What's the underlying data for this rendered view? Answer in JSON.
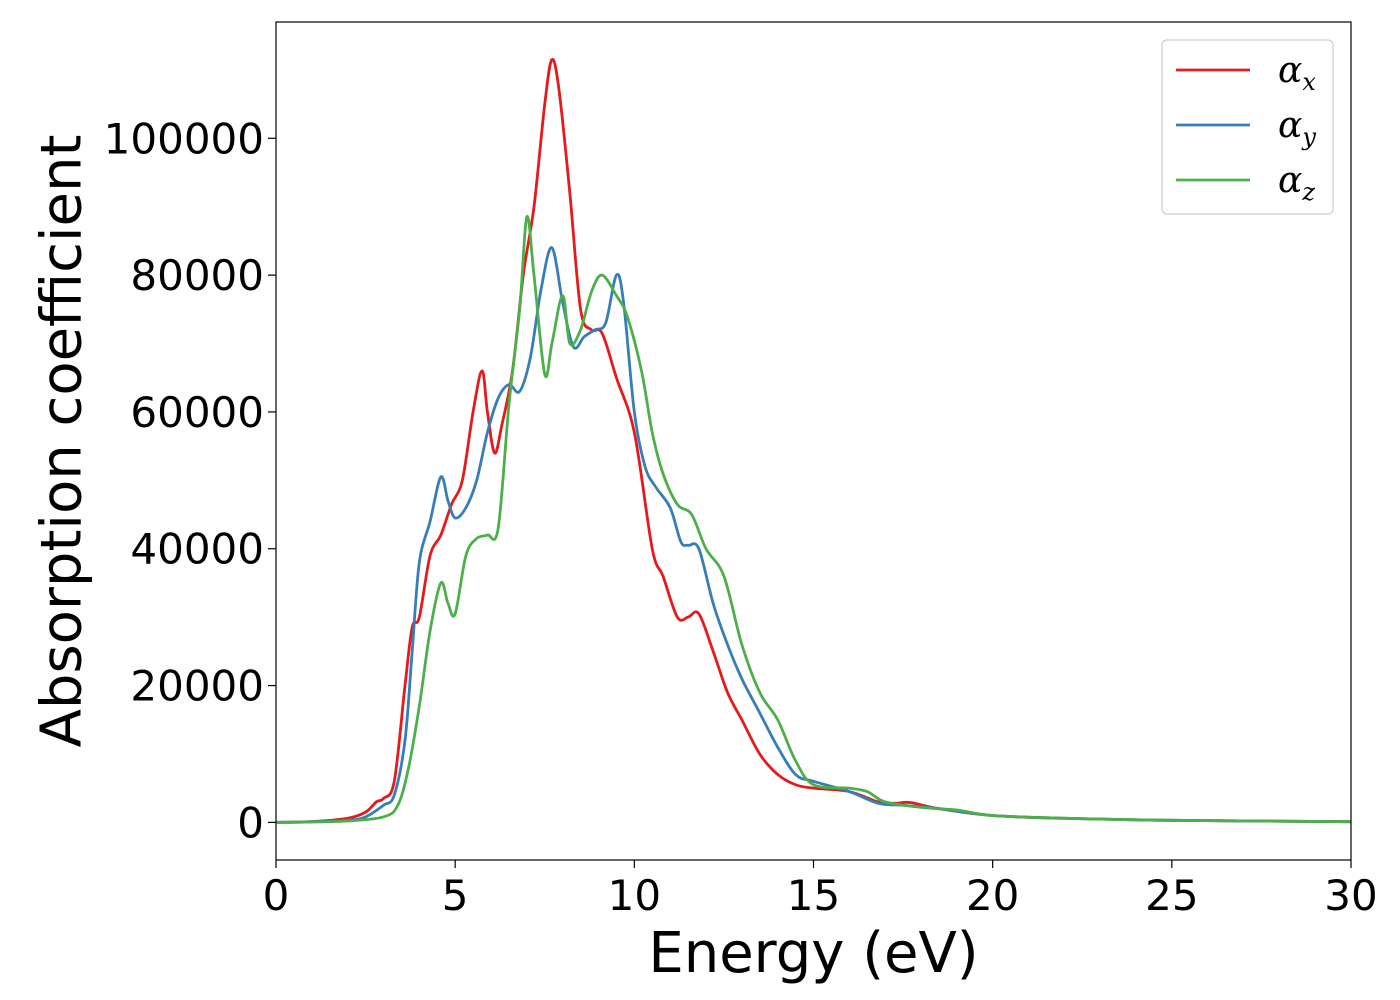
{
  "chart_data": {
    "type": "line",
    "title": "",
    "xlabel": "Energy (eV)",
    "ylabel": "Absorption coefficient",
    "xlim": [
      0,
      30
    ],
    "ylim": [
      -5500,
      117000
    ],
    "xticks": [
      0,
      5,
      10,
      15,
      20,
      25,
      30
    ],
    "yticks": [
      0,
      20000,
      40000,
      60000,
      80000,
      100000
    ],
    "grid": false,
    "legend_position": "top-right",
    "series": [
      {
        "name": "α_x",
        "legend_base": "α",
        "legend_sub": "x",
        "color": "#e41a1c",
        "x": [
          0,
          1,
          2,
          2.5,
          2.8,
          3.0,
          3.3,
          3.6,
          3.8,
          4.0,
          4.3,
          4.6,
          4.9,
          5.2,
          5.5,
          5.75,
          5.9,
          6.1,
          6.3,
          6.6,
          6.9,
          7.2,
          7.5,
          7.7,
          7.9,
          8.2,
          8.5,
          8.8,
          9.1,
          9.5,
          10.0,
          10.5,
          10.8,
          11.2,
          11.5,
          11.8,
          12.2,
          12.6,
          13.0,
          13.5,
          14.0,
          14.5,
          15.0,
          16.0,
          16.8,
          17.3,
          17.7,
          18.5,
          20.0,
          22.0,
          25.0,
          30.0
        ],
        "y": [
          0,
          100,
          600,
          1500,
          3000,
          3500,
          6000,
          20000,
          28500,
          30000,
          39000,
          42000,
          46500,
          50000,
          60000,
          66000,
          60000,
          54000,
          58000,
          66000,
          80000,
          90000,
          105000,
          111500,
          107000,
          92000,
          75000,
          72000,
          71500,
          65000,
          57000,
          40000,
          36000,
          30000,
          30000,
          30500,
          25000,
          19000,
          15000,
          10000,
          7000,
          5500,
          5000,
          4500,
          3000,
          2800,
          2900,
          2000,
          1000,
          600,
          300,
          100
        ]
      },
      {
        "name": "α_y",
        "legend_base": "α",
        "legend_sub": "y",
        "color": "#377eb8",
        "x": [
          0,
          1,
          2,
          2.5,
          3.0,
          3.3,
          3.6,
          3.8,
          4.0,
          4.3,
          4.6,
          4.8,
          5.0,
          5.3,
          5.6,
          5.9,
          6.2,
          6.5,
          6.8,
          7.1,
          7.4,
          7.7,
          8.0,
          8.3,
          8.6,
          8.9,
          9.2,
          9.5,
          9.7,
          10.0,
          10.3,
          10.6,
          11.0,
          11.3,
          11.5,
          11.8,
          12.2,
          12.6,
          13.0,
          13.5,
          14.0,
          14.5,
          15.0,
          16.0,
          16.8,
          17.5,
          18.5,
          20.0,
          22.0,
          25.0,
          30.0
        ],
        "y": [
          0,
          100,
          300,
          800,
          2500,
          4000,
          12000,
          25000,
          38000,
          44000,
          50500,
          47000,
          44500,
          46000,
          50000,
          57000,
          62000,
          64000,
          63000,
          68000,
          78000,
          84000,
          76000,
          69500,
          71000,
          72000,
          73000,
          80000,
          76000,
          60000,
          52000,
          49000,
          46000,
          41000,
          40500,
          40000,
          32000,
          26000,
          21000,
          16000,
          11000,
          7000,
          6000,
          4500,
          2800,
          2500,
          2000,
          1000,
          600,
          300,
          100
        ]
      },
      {
        "name": "α_z",
        "legend_base": "α",
        "legend_sub": "z",
        "color": "#4daf4a",
        "x": [
          0,
          1,
          2,
          3.0,
          3.4,
          3.7,
          4.0,
          4.3,
          4.6,
          4.8,
          5.0,
          5.3,
          5.6,
          5.9,
          6.2,
          6.5,
          6.8,
          7.0,
          7.2,
          7.5,
          7.7,
          8.0,
          8.2,
          8.5,
          8.8,
          9.1,
          9.5,
          9.8,
          10.2,
          10.5,
          10.8,
          11.2,
          11.6,
          12.0,
          12.5,
          13.0,
          13.5,
          14.0,
          14.5,
          15.0,
          16.0,
          16.5,
          17.0,
          18.0,
          19.0,
          20.0,
          22.0,
          25.0,
          30.0
        ],
        "y": [
          0,
          50,
          200,
          800,
          2500,
          8000,
          17000,
          28000,
          35000,
          32000,
          30500,
          39000,
          41500,
          42000,
          43000,
          61000,
          75000,
          88500,
          80000,
          65500,
          70000,
          77000,
          70000,
          72000,
          77500,
          80000,
          77000,
          74000,
          66000,
          57000,
          51000,
          46500,
          45000,
          40000,
          36000,
          26000,
          19000,
          15000,
          9000,
          5500,
          5000,
          4500,
          3000,
          2200,
          1800,
          1000,
          600,
          300,
          100
        ]
      }
    ]
  }
}
